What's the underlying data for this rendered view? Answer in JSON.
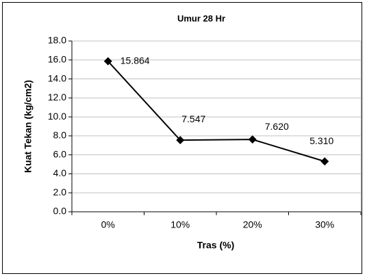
{
  "chart_data": {
    "type": "line",
    "title": "Umur 28 Hr",
    "x_label": "Tras (%)",
    "y_label": "Kuat Tekan (kg/cm2)",
    "categories": [
      "0%",
      "10%",
      "20%",
      "30%"
    ],
    "values": [
      15.864,
      7.547,
      7.62,
      5.31
    ],
    "value_labels": [
      "15.864",
      "7.547",
      "7.620",
      "5.310"
    ],
    "color": "#000000",
    "ylim": [
      0,
      18
    ],
    "yticks": [
      {
        "value": 0,
        "label": "0.0"
      },
      {
        "value": 2,
        "label": "2.0"
      },
      {
        "value": 4,
        "label": "4.0"
      },
      {
        "value": 6,
        "label": "6.0"
      },
      {
        "value": 8,
        "label": "8.0"
      },
      {
        "value": 10,
        "label": "10.0"
      },
      {
        "value": 12,
        "label": "12.0"
      },
      {
        "value": 14,
        "label": "14.0"
      },
      {
        "value": 16,
        "label": "16.0"
      },
      {
        "value": 18,
        "label": "18.0"
      }
    ],
    "grid": true
  }
}
